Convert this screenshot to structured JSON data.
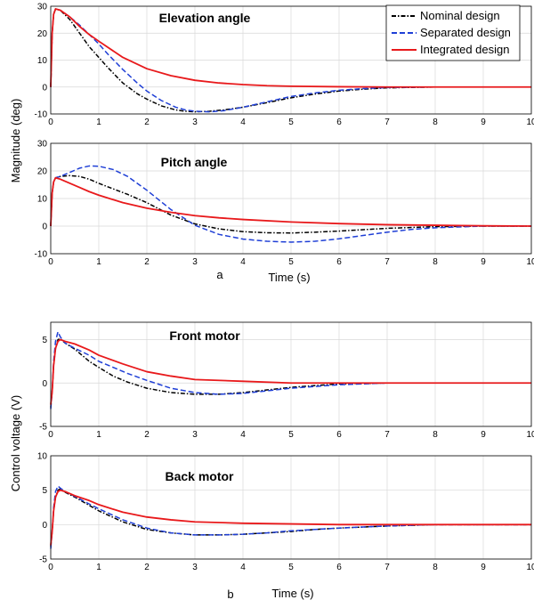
{
  "colors": {
    "nominal": "#000000",
    "separated": "#1f3fd6",
    "integrated": "#e8191b",
    "grid": "#d8d8d8"
  },
  "legend": {
    "placement": "top-right of first panel",
    "entries": [
      "Nominal design",
      "Separated design",
      "Integrated design"
    ]
  },
  "figure_a": {
    "label": "a",
    "xlabel": "Time (s)",
    "ylabel": "Magnitude (deg)"
  },
  "figure_b": {
    "label": "b",
    "xlabel": "Time (s)",
    "ylabel": "Control voltage (V)"
  },
  "chart_data": [
    {
      "type": "line",
      "title": "Elevation angle",
      "xlabel": "",
      "ylabel": "",
      "xlim": [
        0,
        10
      ],
      "ylim": [
        -10,
        30
      ],
      "xticks": [
        "0",
        "1",
        "2",
        "3",
        "4",
        "5",
        "6",
        "7",
        "8",
        "9",
        "10"
      ],
      "yticks": [
        "-10",
        "0",
        "10",
        "20",
        "30"
      ],
      "grid": true,
      "series": [
        {
          "name": "Nominal design",
          "style": "dashdot",
          "color": "#000000",
          "x": [
            0,
            0.03,
            0.06,
            0.1,
            0.2,
            0.4,
            0.6,
            0.8,
            1.0,
            1.2,
            1.5,
            1.8,
            2.0,
            2.3,
            2.6,
            2.8,
            3.0,
            3.3,
            3.6,
            4.0,
            4.5,
            5.0,
            5.5,
            6.0,
            6.5,
            7.0,
            8.0,
            9.0,
            10.0
          ],
          "y": [
            0,
            20,
            27,
            29,
            28.5,
            25,
            20,
            15,
            11,
            7,
            1.5,
            -2.5,
            -4.5,
            -7,
            -8.5,
            -9,
            -9.2,
            -9,
            -8.5,
            -7.5,
            -5.8,
            -4,
            -2.6,
            -1.5,
            -0.8,
            -0.3,
            0,
            0,
            0
          ]
        },
        {
          "name": "Separated design",
          "style": "dashed",
          "color": "#1f3fd6",
          "x": [
            0,
            0.03,
            0.06,
            0.1,
            0.2,
            0.4,
            0.6,
            0.8,
            1.0,
            1.2,
            1.5,
            1.8,
            2.0,
            2.3,
            2.6,
            2.8,
            3.0,
            3.3,
            3.6,
            4.0,
            4.5,
            5.0,
            5.5,
            6.0,
            6.5,
            7.0,
            8.0,
            9.0,
            10.0
          ],
          "y": [
            0,
            20,
            27,
            29,
            28.5,
            26,
            23,
            19.5,
            16,
            12,
            6.5,
            1.5,
            -1.5,
            -5,
            -7.5,
            -8.5,
            -9,
            -9.2,
            -8.8,
            -7.5,
            -5.5,
            -3.5,
            -2.2,
            -1.2,
            -0.6,
            -0.2,
            0,
            0,
            0
          ]
        },
        {
          "name": "Integrated design",
          "style": "solid",
          "color": "#e8191b",
          "x": [
            0,
            0.03,
            0.06,
            0.1,
            0.2,
            0.4,
            0.6,
            0.8,
            1.0,
            1.5,
            2.0,
            2.5,
            3.0,
            3.5,
            4.0,
            4.5,
            5.0,
            6.0,
            7.0,
            8.0,
            9.0,
            10.0
          ],
          "y": [
            0,
            20,
            27,
            29,
            28.5,
            26,
            22.5,
            19.5,
            17,
            11,
            6.8,
            4.2,
            2.5,
            1.5,
            0.9,
            0.5,
            0.3,
            0.1,
            0,
            0,
            0,
            0
          ]
        }
      ]
    },
    {
      "type": "line",
      "title": "Pitch angle",
      "xlabel": "Time (s)",
      "ylabel": "",
      "xlim": [
        0,
        10
      ],
      "ylim": [
        -10,
        30
      ],
      "xticks": [
        "0",
        "1",
        "2",
        "3",
        "4",
        "5",
        "6",
        "7",
        "8",
        "9",
        "10"
      ],
      "yticks": [
        "-10",
        "0",
        "10",
        "20",
        "30"
      ],
      "grid": true,
      "series": [
        {
          "name": "Nominal design",
          "style": "dashdot",
          "color": "#000000",
          "x": [
            0,
            0.03,
            0.06,
            0.1,
            0.2,
            0.4,
            0.6,
            0.8,
            1.0,
            1.3,
            1.6,
            2.0,
            2.5,
            3.0,
            3.5,
            4.0,
            4.5,
            5.0,
            5.5,
            6.0,
            7.0,
            8.0,
            9.0,
            10.0
          ],
          "y": [
            0,
            12,
            16,
            17.5,
            18,
            18.3,
            18,
            17,
            15.5,
            13.5,
            11.5,
            8.5,
            4,
            0.8,
            -1,
            -2,
            -2.4,
            -2.5,
            -2.2,
            -1.8,
            -0.8,
            -0.2,
            0,
            0
          ]
        },
        {
          "name": "Separated design",
          "style": "dashed",
          "color": "#1f3fd6",
          "x": [
            0,
            0.03,
            0.06,
            0.1,
            0.2,
            0.4,
            0.6,
            0.8,
            1.0,
            1.3,
            1.6,
            2.0,
            2.5,
            3.0,
            3.5,
            4.0,
            4.5,
            5.0,
            5.5,
            6.0,
            6.5,
            7.0,
            7.5,
            8.0,
            9.0,
            10.0
          ],
          "y": [
            0,
            12,
            16,
            17.5,
            18,
            19.5,
            21,
            21.8,
            21.7,
            20.5,
            18,
            13,
            6,
            0.3,
            -3,
            -4.7,
            -5.5,
            -5.8,
            -5.5,
            -4.6,
            -3.4,
            -2.2,
            -1.2,
            -0.6,
            0,
            0
          ]
        },
        {
          "name": "Integrated design",
          "style": "solid",
          "color": "#e8191b",
          "x": [
            0,
            0.03,
            0.06,
            0.1,
            0.2,
            0.4,
            0.6,
            0.8,
            1.0,
            1.5,
            2.0,
            2.5,
            3.0,
            3.5,
            4.0,
            5.0,
            6.0,
            7.0,
            8.0,
            9.0,
            10.0
          ],
          "y": [
            0,
            12,
            16,
            17.5,
            17,
            15.5,
            14,
            12.5,
            11.2,
            8.5,
            6.5,
            5,
            3.8,
            3,
            2.4,
            1.5,
            0.9,
            0.5,
            0.3,
            0.1,
            0
          ]
        }
      ]
    },
    {
      "type": "line",
      "title": "Front motor",
      "xlabel": "",
      "ylabel": "",
      "xlim": [
        0,
        10
      ],
      "ylim": [
        -5,
        7
      ],
      "xticks": [
        "0",
        "1",
        "2",
        "3",
        "4",
        "5",
        "6",
        "7",
        "8",
        "9",
        "10"
      ],
      "yticks": [
        "-5",
        "0",
        "5"
      ],
      "grid": true,
      "series": [
        {
          "name": "Nominal design",
          "style": "dashdot",
          "color": "#000000",
          "x": [
            0,
            0.03,
            0.06,
            0.1,
            0.15,
            0.2,
            0.3,
            0.5,
            0.8,
            1.0,
            1.3,
            1.6,
            2.0,
            2.5,
            3.0,
            3.5,
            4.0,
            4.5,
            5.0,
            5.5,
            6.0,
            7.0,
            8.0,
            9.0,
            10.0
          ],
          "y": [
            -2.8,
            -1,
            2,
            4,
            5,
            5.1,
            4.6,
            3.9,
            2.5,
            1.8,
            0.8,
            0.1,
            -0.6,
            -1.1,
            -1.3,
            -1.3,
            -1.1,
            -0.8,
            -0.5,
            -0.3,
            -0.1,
            0,
            0,
            0,
            0
          ]
        },
        {
          "name": "Separated design",
          "style": "dashed",
          "color": "#1f3fd6",
          "x": [
            0,
            0.03,
            0.06,
            0.1,
            0.15,
            0.2,
            0.3,
            0.5,
            0.8,
            1.0,
            1.3,
            1.6,
            2.0,
            2.5,
            3.0,
            3.5,
            4.0,
            4.5,
            5.0,
            5.5,
            6.0,
            7.0,
            8.0,
            9.0,
            10.0
          ],
          "y": [
            -3,
            -1,
            2.5,
            4.8,
            5.9,
            5.3,
            4.6,
            4,
            3.2,
            2.5,
            1.8,
            1.1,
            0.3,
            -0.6,
            -1.1,
            -1.3,
            -1.2,
            -0.9,
            -0.6,
            -0.4,
            -0.2,
            0,
            0,
            0,
            0
          ]
        },
        {
          "name": "Integrated design",
          "style": "solid",
          "color": "#e8191b",
          "x": [
            0,
            0.03,
            0.06,
            0.1,
            0.15,
            0.2,
            0.3,
            0.5,
            0.8,
            1.0,
            1.5,
            2.0,
            2.5,
            3.0,
            4.0,
            5.0,
            6.0,
            7.0,
            8.0,
            9.0,
            10.0
          ],
          "y": [
            -2.5,
            -1,
            2,
            4,
            4.8,
            5,
            4.8,
            4.5,
            3.8,
            3.2,
            2.2,
            1.3,
            0.8,
            0.4,
            0.2,
            0,
            0,
            0,
            0,
            0,
            0
          ]
        }
      ]
    },
    {
      "type": "line",
      "title": "Back motor",
      "xlabel": "Time (s)",
      "ylabel": "",
      "xlim": [
        0,
        10
      ],
      "ylim": [
        -5,
        10
      ],
      "xticks": [
        "0",
        "1",
        "2",
        "3",
        "4",
        "5",
        "6",
        "7",
        "8",
        "9",
        "10"
      ],
      "yticks": [
        "-5",
        "0",
        "5",
        "10"
      ],
      "grid": true,
      "series": [
        {
          "name": "Nominal design",
          "style": "dashdot",
          "color": "#000000",
          "x": [
            0,
            0.03,
            0.06,
            0.1,
            0.15,
            0.2,
            0.3,
            0.5,
            0.8,
            1.0,
            1.5,
            2.0,
            2.5,
            3.0,
            3.5,
            4.0,
            4.5,
            5.0,
            5.5,
            6.0,
            7.0,
            8.0,
            9.0,
            10.0
          ],
          "y": [
            -3.2,
            -1,
            2,
            4,
            5,
            5.2,
            4.7,
            4,
            2.8,
            2,
            0.4,
            -0.7,
            -1.2,
            -1.5,
            -1.5,
            -1.4,
            -1.2,
            -1,
            -0.7,
            -0.5,
            -0.2,
            0,
            0,
            0
          ]
        },
        {
          "name": "Separated design",
          "style": "dashed",
          "color": "#1f3fd6",
          "x": [
            0,
            0.03,
            0.06,
            0.1,
            0.15,
            0.2,
            0.3,
            0.5,
            0.8,
            1.0,
            1.5,
            2.0,
            2.5,
            3.0,
            3.5,
            4.0,
            4.5,
            5.0,
            5.5,
            6.0,
            7.0,
            8.0,
            9.0,
            10.0
          ],
          "y": [
            -3.5,
            -1,
            2.5,
            4.8,
            5.6,
            5.3,
            4.8,
            4.1,
            3,
            2.3,
            0.7,
            -0.5,
            -1.2,
            -1.5,
            -1.5,
            -1.4,
            -1.2,
            -0.9,
            -0.7,
            -0.5,
            -0.2,
            0,
            0,
            0
          ]
        },
        {
          "name": "Integrated design",
          "style": "solid",
          "color": "#e8191b",
          "x": [
            0,
            0.03,
            0.06,
            0.1,
            0.15,
            0.2,
            0.3,
            0.5,
            0.8,
            1.0,
            1.5,
            2.0,
            2.5,
            3.0,
            4.0,
            5.0,
            6.0,
            7.0,
            8.0,
            9.0,
            10.0
          ],
          "y": [
            -3,
            -1,
            2,
            4,
            4.8,
            5,
            4.8,
            4.2,
            3.5,
            2.9,
            1.8,
            1.1,
            0.7,
            0.4,
            0.2,
            0.1,
            0,
            0,
            0,
            0,
            0
          ]
        }
      ]
    }
  ]
}
